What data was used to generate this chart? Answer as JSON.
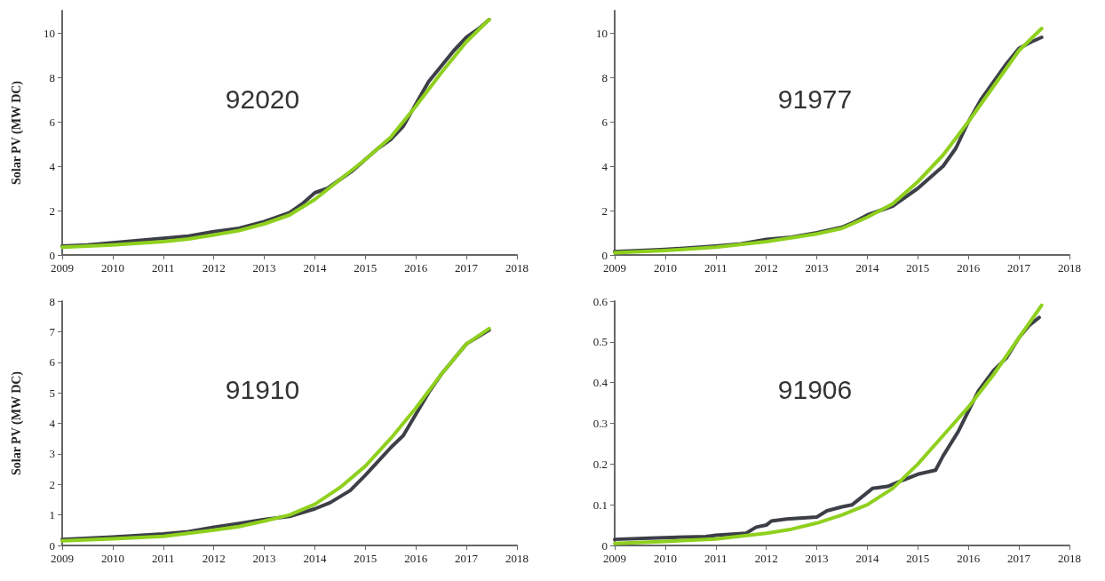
{
  "chart_data": [
    {
      "type": "line",
      "title": "92020",
      "ylabel": "Solar PV (MW DC)",
      "xlim": [
        2009,
        2018
      ],
      "xticks": [
        2009,
        2010,
        2011,
        2012,
        2013,
        2014,
        2015,
        2016,
        2017,
        2018
      ],
      "ylim": [
        0,
        11
      ],
      "yticks": [
        0,
        2,
        4,
        6,
        8,
        10
      ],
      "grid": false,
      "marker": "none",
      "line_style": "solid",
      "series": [
        {
          "color": "#3c3f47",
          "x": [
            2009,
            2009.5,
            2010,
            2010.5,
            2011,
            2011.5,
            2012,
            2012.5,
            2013,
            2013.5,
            2013.75,
            2014,
            2014.25,
            2014.5,
            2014.75,
            2015,
            2015.25,
            2015.5,
            2015.75,
            2016,
            2016.25,
            2016.5,
            2016.75,
            2017,
            2017.25,
            2017.45
          ],
          "values": [
            0.4,
            0.45,
            0.55,
            0.65,
            0.75,
            0.85,
            1.05,
            1.2,
            1.5,
            1.9,
            2.3,
            2.8,
            3.0,
            3.4,
            3.8,
            4.3,
            4.8,
            5.2,
            5.8,
            6.8,
            7.8,
            8.5,
            9.2,
            9.8,
            10.2,
            10.6
          ]
        },
        {
          "color": "#8fd01e",
          "x": [
            2009,
            2010,
            2011,
            2011.5,
            2012,
            2012.5,
            2013,
            2013.5,
            2014,
            2014.5,
            2015,
            2015.5,
            2016,
            2016.5,
            2017,
            2017.45
          ],
          "values": [
            0.35,
            0.45,
            0.6,
            0.72,
            0.9,
            1.1,
            1.4,
            1.8,
            2.5,
            3.4,
            4.3,
            5.3,
            6.7,
            8.2,
            9.6,
            10.6
          ]
        }
      ]
    },
    {
      "type": "line",
      "title": "91977",
      "xlim": [
        2009,
        2018
      ],
      "xticks": [
        2009,
        2010,
        2011,
        2012,
        2013,
        2014,
        2015,
        2016,
        2017,
        2018
      ],
      "ylim": [
        0,
        11
      ],
      "yticks": [
        0,
        2,
        4,
        6,
        8,
        10
      ],
      "grid": false,
      "marker": "none",
      "line_style": "solid",
      "series": [
        {
          "color": "#3c3f47",
          "x": [
            2009,
            2010,
            2011,
            2011.5,
            2012,
            2012.5,
            2013,
            2013.5,
            2013.75,
            2014,
            2014.5,
            2015,
            2015.5,
            2015.75,
            2016,
            2016.25,
            2016.5,
            2016.75,
            2017,
            2017.25,
            2017.45
          ],
          "values": [
            0.15,
            0.25,
            0.4,
            0.5,
            0.7,
            0.8,
            1.0,
            1.25,
            1.5,
            1.8,
            2.2,
            3.0,
            4.0,
            4.8,
            6.0,
            7.0,
            7.8,
            8.6,
            9.3,
            9.6,
            9.8
          ]
        },
        {
          "color": "#8fd01e",
          "x": [
            2009,
            2010,
            2011,
            2012,
            2013,
            2013.5,
            2014,
            2014.5,
            2015,
            2015.5,
            2016,
            2016.5,
            2017,
            2017.45
          ],
          "values": [
            0.1,
            0.2,
            0.35,
            0.6,
            0.95,
            1.2,
            1.7,
            2.3,
            3.3,
            4.5,
            6.0,
            7.6,
            9.2,
            10.2
          ]
        }
      ]
    },
    {
      "type": "line",
      "title": "91910",
      "ylabel": "Solar PV (MW DC)",
      "xlim": [
        2009,
        2018
      ],
      "xticks": [
        2009,
        2010,
        2011,
        2012,
        2013,
        2014,
        2015,
        2016,
        2017,
        2018
      ],
      "ylim": [
        0,
        8
      ],
      "yticks": [
        0,
        1,
        2,
        3,
        4,
        5,
        6,
        7,
        8
      ],
      "grid": false,
      "marker": "none",
      "line_style": "solid",
      "series": [
        {
          "color": "#3c3f47",
          "x": [
            2009,
            2010,
            2011,
            2011.5,
            2012,
            2012.5,
            2013,
            2013.5,
            2014,
            2014.3,
            2014.7,
            2015,
            2015.5,
            2015.75,
            2016,
            2016.25,
            2016.5,
            2016.75,
            2017,
            2017.45
          ],
          "values": [
            0.2,
            0.28,
            0.38,
            0.45,
            0.6,
            0.72,
            0.85,
            0.95,
            1.2,
            1.4,
            1.8,
            2.3,
            3.2,
            3.6,
            4.3,
            5.0,
            5.6,
            6.1,
            6.6,
            7.05
          ]
        },
        {
          "color": "#8fd01e",
          "x": [
            2009,
            2010,
            2011,
            2012,
            2012.5,
            2013,
            2013.5,
            2014,
            2014.5,
            2015,
            2015.5,
            2016,
            2016.5,
            2017,
            2017.45
          ],
          "values": [
            0.15,
            0.22,
            0.3,
            0.5,
            0.62,
            0.8,
            1.0,
            1.35,
            1.9,
            2.6,
            3.5,
            4.5,
            5.6,
            6.6,
            7.1
          ]
        }
      ]
    },
    {
      "type": "line",
      "title": "91906",
      "xlim": [
        2009,
        2018
      ],
      "xticks": [
        2009,
        2010,
        2011,
        2012,
        2013,
        2014,
        2015,
        2016,
        2017,
        2018
      ],
      "ylim": [
        0,
        0.6
      ],
      "yticks": [
        0,
        0.1,
        0.2,
        0.3,
        0.4,
        0.5,
        0.6
      ],
      "grid": false,
      "marker": "none",
      "line_style": "solid",
      "series": [
        {
          "color": "#3c3f47",
          "x": [
            2009,
            2009.7,
            2010.8,
            2011,
            2011.6,
            2011.8,
            2012,
            2012.1,
            2012.4,
            2013,
            2013.2,
            2013.5,
            2013.7,
            2013.8,
            2014.1,
            2014.4,
            2014.6,
            2015,
            2015.35,
            2015.5,
            2015.8,
            2016,
            2016.2,
            2016.5,
            2016.75,
            2017,
            2017.2,
            2017.4
          ],
          "values": [
            0.015,
            0.018,
            0.022,
            0.025,
            0.03,
            0.045,
            0.05,
            0.06,
            0.065,
            0.07,
            0.085,
            0.095,
            0.1,
            0.11,
            0.14,
            0.145,
            0.155,
            0.175,
            0.185,
            0.22,
            0.28,
            0.33,
            0.38,
            0.43,
            0.46,
            0.51,
            0.54,
            0.56
          ]
        },
        {
          "color": "#8fd01e",
          "x": [
            2009,
            2010,
            2011,
            2012,
            2012.5,
            2013,
            2013.5,
            2014,
            2014.5,
            2015,
            2015.5,
            2016,
            2016.5,
            2017,
            2017.45
          ],
          "values": [
            0.005,
            0.01,
            0.016,
            0.03,
            0.04,
            0.055,
            0.075,
            0.1,
            0.14,
            0.2,
            0.27,
            0.34,
            0.42,
            0.51,
            0.59
          ]
        }
      ]
    }
  ]
}
